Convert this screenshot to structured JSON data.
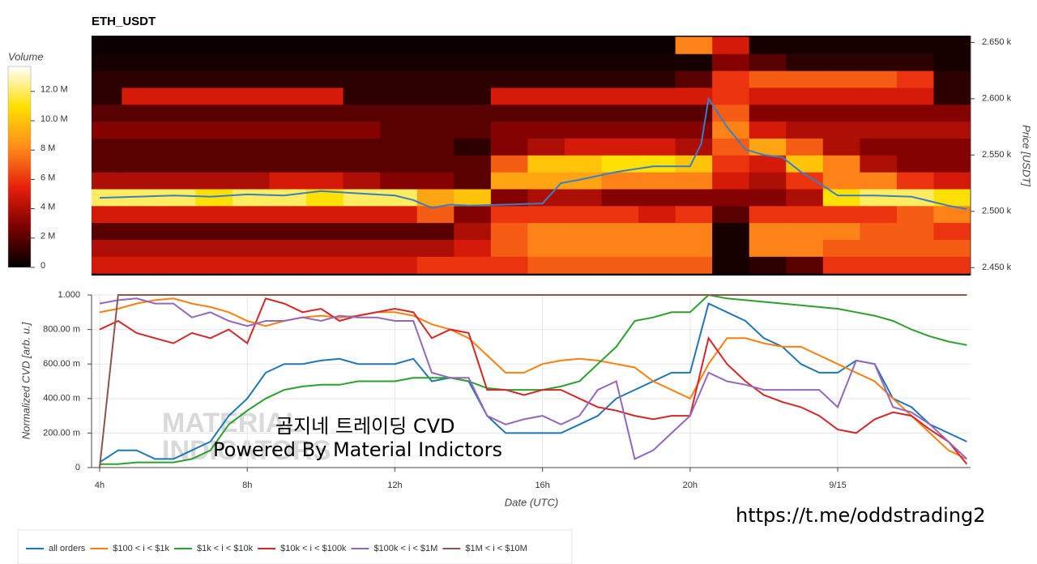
{
  "chart_data": [
    {
      "type": "heatmap",
      "title": "ETH_USDT",
      "y_label": "Price [USDT]",
      "colorbar_label": "Volume",
      "colormap": [
        "#000000",
        "#7a0000",
        "#e8200c",
        "#ff8c1a",
        "#ffe000",
        "#ffffff"
      ],
      "clim": [
        0,
        13.7
      ],
      "cticks": [
        0,
        {
          "value": 2,
          "label": "2 M"
        },
        {
          "value": 4,
          "label": "4 M"
        },
        {
          "value": 6,
          "label": "6 M"
        },
        {
          "value": 8,
          "label": "8 M"
        },
        {
          "value": 10,
          "label": "10.0 M"
        },
        {
          "value": 12,
          "label": "12.0 M"
        }
      ],
      "xlim": [
        3.78,
        27.6
      ],
      "ylim": [
        2443,
        2656
      ],
      "yticks": [
        {
          "value": 2450,
          "label": "2.450 k"
        },
        {
          "value": 2500,
          "label": "2.500 k"
        },
        {
          "value": 2550,
          "label": "2.550 k"
        },
        {
          "value": 2600,
          "label": "2.600 k"
        },
        {
          "value": 2650,
          "label": "2.650 k"
        }
      ],
      "x_bins": [
        3.6,
        4.6,
        5.6,
        6.6,
        7.6,
        8.6,
        9.6,
        10.6,
        11.6,
        12.6,
        13.6,
        14.6,
        15.6,
        16.6,
        17.6,
        18.6,
        19.6,
        20.6,
        21.6,
        22.6,
        23.6,
        24.6,
        25.6,
        26.6,
        27.6
      ],
      "y_bins": [
        2445,
        2460,
        2475,
        2490,
        2505,
        2520,
        2535,
        2550,
        2565,
        2580,
        2595,
        2610,
        2625,
        2640,
        2655
      ],
      "z": [
        [
          5,
          5,
          5,
          5,
          5,
          5,
          5,
          5,
          5,
          6,
          6,
          6,
          7,
          7,
          7,
          7,
          7,
          0.5,
          1,
          2,
          6,
          6,
          6,
          6
        ],
        [
          4,
          4,
          4,
          4,
          4,
          4,
          4,
          4,
          4,
          4,
          5,
          7,
          8,
          8,
          8,
          8,
          8,
          0.5,
          8,
          8,
          7,
          7,
          7,
          7
        ],
        [
          2,
          2,
          2,
          2,
          2,
          2,
          2,
          2,
          2,
          2,
          4,
          7,
          8,
          8,
          8,
          8,
          8,
          0.5,
          8,
          8,
          8,
          7,
          7,
          6
        ],
        [
          5,
          5,
          5,
          5,
          5,
          5,
          5,
          5,
          5,
          7,
          3,
          6,
          6,
          6,
          6,
          5,
          6,
          2,
          6,
          6,
          6,
          6,
          7,
          8
        ],
        [
          12,
          12,
          12,
          11,
          12,
          12,
          11,
          12,
          12,
          9,
          10,
          3,
          4,
          4,
          3,
          3,
          3,
          3,
          3,
          4,
          11,
          12,
          12,
          11
        ],
        [
          4,
          4,
          4,
          4,
          4,
          5,
          5,
          4,
          3,
          3,
          2,
          9,
          9,
          9,
          8,
          8,
          8,
          5,
          4,
          6,
          8,
          8,
          6,
          5
        ],
        [
          2,
          2,
          2,
          2,
          2,
          2,
          2,
          2,
          2,
          2,
          2,
          7,
          10,
          10,
          11,
          11,
          10,
          6,
          5,
          10,
          8,
          4,
          3,
          3
        ],
        [
          2,
          2,
          2,
          2,
          2,
          2,
          2,
          2,
          2,
          2,
          1,
          3,
          4,
          5,
          5,
          5,
          4,
          7,
          9,
          7,
          4,
          3,
          3,
          3
        ],
        [
          3,
          3,
          3,
          3,
          3,
          3,
          3,
          3,
          2,
          2,
          2,
          3,
          3,
          3,
          3,
          3,
          3,
          8,
          5,
          4,
          4,
          4,
          4,
          4
        ],
        [
          2,
          2,
          2,
          2,
          2,
          2,
          2,
          2,
          2,
          2,
          2,
          2,
          2,
          2,
          2,
          2,
          2,
          7,
          3,
          3,
          3,
          3,
          3,
          3
        ],
        [
          1,
          5,
          5,
          5,
          5,
          5,
          5,
          1,
          1,
          1,
          1,
          5,
          5,
          5,
          5,
          5,
          5,
          6,
          5,
          5,
          5,
          5,
          5,
          1
        ],
        [
          1,
          1,
          1,
          1,
          1,
          1,
          1,
          1,
          1,
          1,
          1,
          1,
          1,
          1,
          1,
          1,
          2,
          6,
          7,
          7,
          7,
          7,
          6,
          1
        ],
        [
          0.5,
          0.5,
          0.5,
          0.5,
          0.5,
          0.5,
          0.5,
          0.5,
          0.5,
          0.5,
          0.5,
          0.5,
          0.5,
          0.5,
          0.5,
          0.5,
          0.5,
          3,
          2,
          1,
          1,
          1,
          1,
          0.5
        ],
        [
          0.3,
          0.3,
          0.3,
          0.3,
          0.3,
          0.3,
          0.3,
          0.3,
          0.3,
          0.3,
          0.3,
          0.3,
          0.3,
          0.3,
          0.3,
          0.3,
          8,
          5,
          0.5,
          0.5,
          0.5,
          0.5,
          0.5,
          0.5
        ]
      ],
      "price_line": {
        "color": "#3a7fc1",
        "x": [
          4,
          5,
          6,
          7,
          8,
          9,
          10,
          11,
          12,
          12.5,
          13,
          13.5,
          14,
          15,
          16,
          16.5,
          17,
          18,
          19,
          20,
          20.3,
          20.5,
          21,
          21.5,
          22,
          22.5,
          23,
          23.5,
          24,
          25,
          26,
          27,
          27.5
        ],
        "values": [
          2512,
          2513,
          2514,
          2513,
          2515,
          2514,
          2518,
          2516,
          2514,
          2510,
          2503,
          2506,
          2505,
          2506,
          2507,
          2525,
          2528,
          2535,
          2540,
          2540,
          2560,
          2600,
          2575,
          2555,
          2550,
          2548,
          2535,
          2525,
          2514,
          2514,
          2513,
          2505,
          2502
        ]
      }
    },
    {
      "type": "line",
      "x_label": "Date (UTC)",
      "y_label": "Normalized CVD [arb. u.]",
      "xlim": [
        3.78,
        27.6
      ],
      "ylim": [
        0,
        1
      ],
      "grid": true,
      "legend": "bottom-left",
      "xticks": [
        {
          "value": 4,
          "label": "4h"
        },
        {
          "value": 8,
          "label": "8h"
        },
        {
          "value": 12,
          "label": "12h"
        },
        {
          "value": 16,
          "label": "16h"
        },
        {
          "value": 20,
          "label": "20h"
        },
        {
          "value": 24,
          "label": "9/15"
        }
      ],
      "yticks": [
        0,
        {
          "value": 0.2,
          "label": "200.00 m"
        },
        {
          "value": 0.4,
          "label": "400.00 m"
        },
        {
          "value": 0.6,
          "label": "600.00 m"
        },
        {
          "value": 0.8,
          "label": "800.00 m"
        },
        {
          "value": 1,
          "label": "1.000"
        }
      ],
      "x": [
        4,
        4.5,
        5,
        5.5,
        6,
        6.5,
        7,
        7.5,
        8,
        8.5,
        9,
        9.5,
        10,
        10.5,
        11,
        11.5,
        12,
        12.5,
        13,
        13.5,
        14,
        14.5,
        15,
        15.5,
        16,
        16.5,
        17,
        17.5,
        18,
        18.5,
        19,
        19.5,
        20,
        20.5,
        21,
        21.5,
        22,
        22.5,
        23,
        23.5,
        24,
        24.5,
        25,
        25.5,
        26,
        26.5,
        27,
        27.5
      ],
      "series": [
        {
          "name": "all orders",
          "color": "#1f77b4",
          "values": [
            0.03,
            0.1,
            0.1,
            0.05,
            0.05,
            0.1,
            0.15,
            0.3,
            0.4,
            0.55,
            0.6,
            0.6,
            0.62,
            0.63,
            0.6,
            0.6,
            0.6,
            0.63,
            0.5,
            0.52,
            0.5,
            0.3,
            0.2,
            0.2,
            0.2,
            0.2,
            0.25,
            0.3,
            0.4,
            0.45,
            0.5,
            0.55,
            0.55,
            0.95,
            0.9,
            0.85,
            0.75,
            0.7,
            0.6,
            0.55,
            0.55,
            0.62,
            0.6,
            0.4,
            0.35,
            0.25,
            0.2,
            0.15
          ]
        },
        {
          "name": "$100 < i < $1k",
          "color": "#ff7f0e",
          "values": [
            0.9,
            0.92,
            0.95,
            0.97,
            0.98,
            0.95,
            0.93,
            0.9,
            0.85,
            0.82,
            0.85,
            0.87,
            0.88,
            0.87,
            0.88,
            0.9,
            0.9,
            0.88,
            0.83,
            0.8,
            0.75,
            0.65,
            0.55,
            0.55,
            0.6,
            0.62,
            0.63,
            0.62,
            0.6,
            0.58,
            0.5,
            0.45,
            0.4,
            0.6,
            0.75,
            0.75,
            0.72,
            0.7,
            0.7,
            0.65,
            0.6,
            0.55,
            0.5,
            0.4,
            0.3,
            0.2,
            0.1,
            0.05
          ]
        },
        {
          "name": "$1k < i < $10k",
          "color": "#2ca02c",
          "values": [
            0.02,
            0.02,
            0.03,
            0.03,
            0.03,
            0.05,
            0.1,
            0.25,
            0.33,
            0.4,
            0.45,
            0.47,
            0.48,
            0.48,
            0.5,
            0.5,
            0.5,
            0.52,
            0.52,
            0.52,
            0.5,
            0.46,
            0.45,
            0.45,
            0.45,
            0.47,
            0.5,
            0.6,
            0.7,
            0.85,
            0.87,
            0.9,
            0.9,
            1.0,
            0.98,
            0.97,
            0.96,
            0.95,
            0.94,
            0.93,
            0.92,
            0.9,
            0.88,
            0.85,
            0.8,
            0.76,
            0.73,
            0.71
          ]
        },
        {
          "name": "$10k < i < $100k",
          "color": "#d62728",
          "values": [
            0.8,
            0.85,
            0.78,
            0.75,
            0.72,
            0.78,
            0.75,
            0.8,
            0.72,
            0.98,
            0.95,
            0.9,
            0.92,
            0.85,
            0.88,
            0.9,
            0.92,
            0.9,
            0.75,
            0.8,
            0.78,
            0.45,
            0.45,
            0.42,
            0.45,
            0.45,
            0.4,
            0.35,
            0.33,
            0.3,
            0.28,
            0.3,
            0.3,
            0.75,
            0.6,
            0.5,
            0.42,
            0.38,
            0.35,
            0.3,
            0.22,
            0.2,
            0.28,
            0.32,
            0.3,
            0.22,
            0.15,
            0.02
          ]
        },
        {
          "name": "$100k < i < $1M",
          "color": "#9467bd",
          "values": [
            0.95,
            0.97,
            0.98,
            0.95,
            0.95,
            0.87,
            0.9,
            0.85,
            0.82,
            0.85,
            0.85,
            0.87,
            0.85,
            0.88,
            0.87,
            0.87,
            0.85,
            0.85,
            0.55,
            0.52,
            0.52,
            0.3,
            0.25,
            0.28,
            0.3,
            0.25,
            0.3,
            0.45,
            0.5,
            0.05,
            0.1,
            0.2,
            0.3,
            0.55,
            0.5,
            0.48,
            0.45,
            0.45,
            0.45,
            0.45,
            0.35,
            0.62,
            0.6,
            0.35,
            0.32,
            0.25,
            0.15,
            0.05
          ]
        },
        {
          "name": "$1M < i < $10M",
          "color": "#8c564b",
          "values": [
            0,
            1,
            1,
            1,
            1,
            1,
            1,
            1,
            1,
            1,
            1,
            1,
            1,
            1,
            1,
            1,
            1,
            1,
            1,
            1,
            1,
            1,
            1,
            1,
            1,
            1,
            1,
            1,
            1,
            1,
            1,
            1,
            1,
            1,
            1,
            1,
            1,
            1,
            1,
            1,
            1,
            1,
            1,
            1,
            1,
            1,
            1,
            1
          ]
        }
      ],
      "watermark": [
        "MATERIAL",
        "INDICATORS"
      ],
      "annotations": [
        "곰지네 트레이딩 CVD",
        "Powered By Material Indictors"
      ]
    }
  ],
  "link": "https://t.me/oddstrading2"
}
